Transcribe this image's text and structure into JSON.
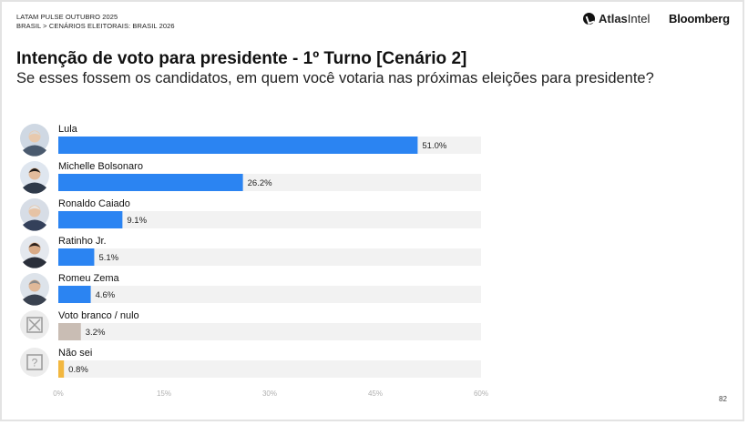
{
  "header": {
    "kicker_line1": "LATAM PULSE OUTUBRO 2025",
    "kicker_line2": "BRASIL > CENÁRIOS ELEITORAIS: BRASIL 2026",
    "brand_atlas_bold": "Atlas",
    "brand_atlas_light": "Intel",
    "brand_bloomberg": "Bloomberg"
  },
  "title": "Intenção de voto para presidente - 1º Turno [Cenário 2]",
  "subtitle": "Se esses fossem os candidatos, em quem você votaria nas próximas eleições para presidente?",
  "page_number": "82",
  "colors": {
    "candidate_bar": "#2b84f2",
    "blank_null_bar": "#c9bdb4",
    "dont_know_bar": "#f2b73f",
    "track": "#f2f2f2"
  },
  "icons": [
    "lula-avatar",
    "michelle-bolsonaro-avatar",
    "ronaldo-caiado-avatar",
    "ratinho-jr-avatar",
    "romeu-zema-avatar",
    "x-box-icon",
    "question-box-icon"
  ],
  "chart_data": {
    "type": "bar",
    "orientation": "horizontal",
    "categories": [
      "Lula",
      "Michelle Bolsonaro",
      "Ronaldo Caiado",
      "Ratinho Jr.",
      "Romeu Zema",
      "Voto branco / nulo",
      "Não sei"
    ],
    "values": [
      51.0,
      26.2,
      9.1,
      5.1,
      4.6,
      3.2,
      0.8
    ],
    "value_labels": [
      "51.0%",
      "26.2%",
      "9.1%",
      "5.1%",
      "4.6%",
      "3.2%",
      "0.8%"
    ],
    "xlim": [
      0,
      60
    ],
    "x_ticks": [
      0,
      15,
      30,
      45,
      60
    ],
    "x_tick_labels": [
      "0%",
      "15%",
      "30%",
      "45%",
      "60%"
    ],
    "grid": false,
    "legend": "none"
  }
}
